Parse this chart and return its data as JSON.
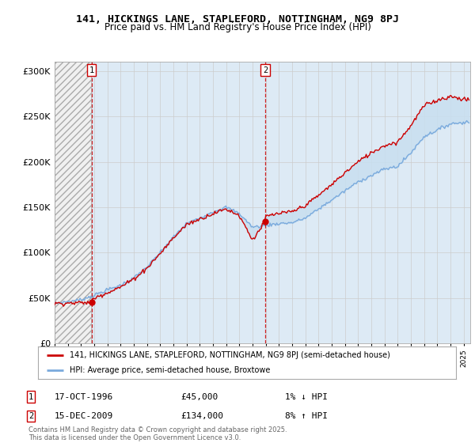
{
  "title_line1": "141, HICKINGS LANE, STAPLEFORD, NOTTINGHAM, NG9 8PJ",
  "title_line2": "Price paid vs. HM Land Registry's House Price Index (HPI)",
  "ylabel_ticks": [
    "£0",
    "£50K",
    "£100K",
    "£150K",
    "£200K",
    "£250K",
    "£300K"
  ],
  "ytick_vals": [
    0,
    50000,
    100000,
    150000,
    200000,
    250000,
    300000
  ],
  "ylim": [
    0,
    310000
  ],
  "xlim_start": 1994.0,
  "xlim_end": 2025.5,
  "purchase1": {
    "year": 1996.79,
    "price": 45000,
    "label": "1",
    "date": "17-OCT-1996",
    "amount": "£45,000",
    "hpi": "1% ↓ HPI"
  },
  "purchase2": {
    "year": 2009.96,
    "price": 134000,
    "label": "2",
    "date": "15-DEC-2009",
    "amount": "£134,000",
    "hpi": "8% ↑ HPI"
  },
  "red_line_color": "#cc0000",
  "blue_line_color": "#7aaadd",
  "blue_fill_color": "#c8dff0",
  "grid_color": "#cccccc",
  "bg_color": "#ddeaf5",
  "hatch_bg": "#f0f0f0",
  "legend1_label": "141, HICKINGS LANE, STAPLEFORD, NOTTINGHAM, NG9 8PJ (semi-detached house)",
  "legend2_label": "HPI: Average price, semi-detached house, Broxtowe",
  "footnote": "Contains HM Land Registry data © Crown copyright and database right 2025.\nThis data is licensed under the Open Government Licence v3.0.",
  "hpi_key_years": [
    1994,
    1995,
    1996,
    1997,
    1998,
    1999,
    2000,
    2001,
    2002,
    2003,
    2004,
    2005,
    2006,
    2007,
    2008,
    2009,
    2010,
    2011,
    2012,
    2013,
    2014,
    2015,
    2016,
    2017,
    2018,
    2019,
    2020,
    2021,
    2022,
    2023,
    2024,
    2025.4
  ],
  "hpi_key_vals": [
    44000,
    46000,
    48000,
    53000,
    59000,
    64000,
    72000,
    84000,
    100000,
    117000,
    132000,
    138000,
    145000,
    150000,
    143000,
    128000,
    130000,
    132000,
    133000,
    138000,
    148000,
    158000,
    168000,
    178000,
    185000,
    192000,
    195000,
    210000,
    228000,
    235000,
    242000,
    244000
  ],
  "prop_key_years": [
    1994,
    1996.79,
    1997,
    1998,
    1999,
    2000,
    2001,
    2002,
    2003,
    2004,
    2005,
    2006,
    2007,
    2008,
    2009.0,
    2009.96,
    2010,
    2011,
    2012,
    2013,
    2014,
    2015,
    2016,
    2017,
    2018,
    2019,
    2020,
    2021,
    2022,
    2023,
    2024,
    2025.4
  ],
  "prop_key_vals": [
    44000,
    45000,
    50000,
    56000,
    62000,
    71000,
    83000,
    99000,
    116000,
    131000,
    137000,
    143000,
    148000,
    141000,
    114000,
    134000,
    140000,
    143000,
    145000,
    152000,
    163000,
    175000,
    188000,
    200000,
    210000,
    218000,
    222000,
    240000,
    262000,
    268000,
    272000,
    268000
  ]
}
